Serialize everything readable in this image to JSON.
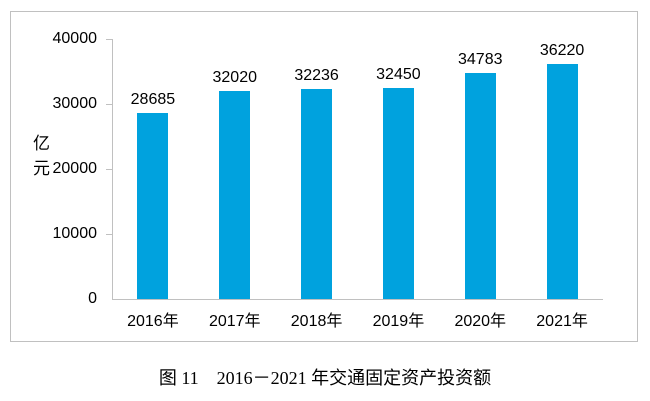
{
  "figure": {
    "caption": "图 11　2016－2021 年交通固定资产投资额"
  },
  "chart_data": {
    "type": "bar",
    "title": "",
    "categories": [
      "2016年",
      "2017年",
      "2018年",
      "2019年",
      "2020年",
      "2021年"
    ],
    "values": [
      28685,
      32020,
      32236,
      32450,
      34783,
      36220
    ],
    "data_labels": [
      "28685",
      "32020",
      "32236",
      "32450",
      "34783",
      "36220"
    ],
    "xlabel": "",
    "ylabel": "亿元",
    "ylim": [
      0,
      40000
    ],
    "y_ticks": [
      0,
      10000,
      20000,
      30000,
      40000
    ],
    "grid": false,
    "legend": "none",
    "bar_color": "#00a2de",
    "axis_color": "#c0c0c0",
    "text_color": "#000000"
  }
}
